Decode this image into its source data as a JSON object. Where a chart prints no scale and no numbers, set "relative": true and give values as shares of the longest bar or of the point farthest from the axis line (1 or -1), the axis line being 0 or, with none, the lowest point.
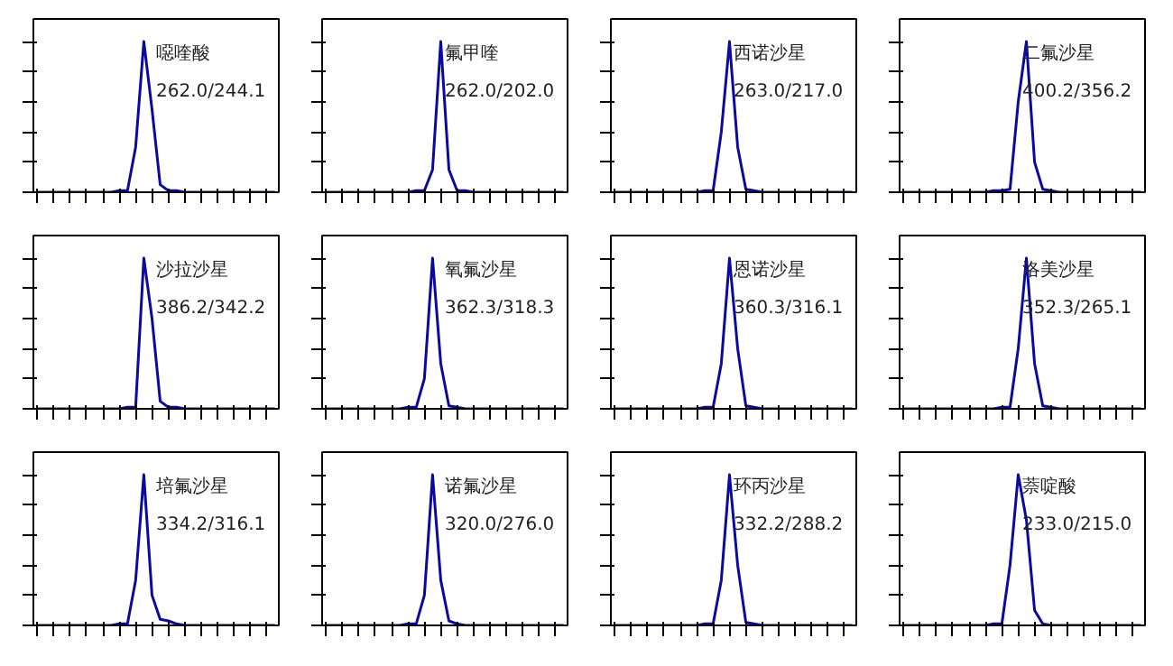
{
  "chart_data": [
    {
      "type": "line",
      "relative": true,
      "tick_labels": false,
      "categories": [
        null,
        null,
        null,
        null,
        null,
        null,
        null,
        null,
        null,
        null,
        null,
        null,
        null,
        null,
        null,
        null,
        null,
        null,
        null,
        null,
        null,
        null,
        null,
        null,
        null,
        null,
        null,
        null,
        null,
        null
      ],
      "series": [
        {
          "color": "#0a0aa0",
          "values": [
            0,
            0,
            0,
            0,
            0,
            0,
            0,
            0,
            0,
            0,
            0.01,
            0.01,
            0.3,
            1,
            0.55,
            0.05,
            0.01,
            0.01,
            0,
            0,
            0,
            0,
            0,
            0,
            0,
            0,
            0,
            0,
            0,
            0
          ]
        }
      ],
      "annotations": [
        "噁喹酸",
        "262.0/244.1"
      ]
    },
    {
      "type": "line",
      "relative": true,
      "tick_labels": false,
      "categories": [
        null,
        null,
        null,
        null,
        null,
        null,
        null,
        null,
        null,
        null,
        null,
        null,
        null,
        null,
        null,
        null,
        null,
        null,
        null,
        null,
        null,
        null,
        null,
        null,
        null,
        null,
        null,
        null,
        null,
        null
      ],
      "series": [
        {
          "color": "#0a0aa0",
          "values": [
            0,
            0,
            0,
            0,
            0,
            0,
            0,
            0,
            0,
            0,
            0,
            0.01,
            0.01,
            0.15,
            1,
            0.15,
            0.01,
            0.01,
            0,
            0,
            0,
            0,
            0,
            0,
            0,
            0,
            0,
            0,
            0,
            0
          ]
        }
      ],
      "annotations": [
        "氟甲喹",
        "262.0/202.0"
      ]
    },
    {
      "type": "line",
      "relative": true,
      "tick_labels": false,
      "categories": [
        null,
        null,
        null,
        null,
        null,
        null,
        null,
        null,
        null,
        null,
        null,
        null,
        null,
        null,
        null,
        null,
        null,
        null,
        null,
        null,
        null,
        null,
        null,
        null,
        null,
        null,
        null,
        null,
        null,
        null
      ],
      "series": [
        {
          "color": "#0a0aa0",
          "values": [
            0,
            0,
            0,
            0,
            0,
            0,
            0,
            0,
            0,
            0,
            0,
            0.01,
            0.01,
            0.4,
            1,
            0.3,
            0.02,
            0.01,
            0,
            0,
            0,
            0,
            0,
            0,
            0,
            0,
            0,
            0,
            0,
            0
          ]
        }
      ],
      "annotations": [
        "西诺沙星",
        "263.0/217.0"
      ]
    },
    {
      "type": "line",
      "relative": true,
      "tick_labels": false,
      "categories": [
        null,
        null,
        null,
        null,
        null,
        null,
        null,
        null,
        null,
        null,
        null,
        null,
        null,
        null,
        null,
        null,
        null,
        null,
        null,
        null,
        null,
        null,
        null,
        null,
        null,
        null,
        null,
        null,
        null,
        null
      ],
      "series": [
        {
          "color": "#0a0aa0",
          "values": [
            0,
            0,
            0,
            0,
            0,
            0,
            0,
            0,
            0,
            0,
            0,
            0.01,
            0.01,
            0.02,
            0.6,
            1,
            0.2,
            0.02,
            0.01,
            0,
            0,
            0,
            0,
            0,
            0,
            0,
            0,
            0,
            0,
            0
          ]
        }
      ],
      "annotations": [
        "二氟沙星",
        "400.2/356.2"
      ]
    },
    {
      "type": "line",
      "relative": true,
      "tick_labels": false,
      "categories": [
        null,
        null,
        null,
        null,
        null,
        null,
        null,
        null,
        null,
        null,
        null,
        null,
        null,
        null,
        null,
        null,
        null,
        null,
        null,
        null,
        null,
        null,
        null,
        null,
        null,
        null,
        null,
        null,
        null,
        null
      ],
      "series": [
        {
          "color": "#0a0aa0",
          "values": [
            0,
            0,
            0,
            0,
            0,
            0,
            0,
            0,
            0,
            0,
            0,
            0.01,
            0.01,
            1,
            0.6,
            0.05,
            0.01,
            0.01,
            0,
            0,
            0,
            0,
            0,
            0,
            0,
            0,
            0,
            0,
            0,
            0
          ]
        }
      ],
      "annotations": [
        "沙拉沙星",
        "386.2/342.2"
      ]
    },
    {
      "type": "line",
      "relative": true,
      "tick_labels": false,
      "categories": [
        null,
        null,
        null,
        null,
        null,
        null,
        null,
        null,
        null,
        null,
        null,
        null,
        null,
        null,
        null,
        null,
        null,
        null,
        null,
        null,
        null,
        null,
        null,
        null,
        null,
        null,
        null,
        null,
        null,
        null
      ],
      "series": [
        {
          "color": "#0a0aa0",
          "values": [
            0,
            0,
            0,
            0,
            0,
            0,
            0,
            0,
            0,
            0,
            0.01,
            0.01,
            0.2,
            1,
            0.3,
            0.02,
            0.01,
            0,
            0,
            0,
            0,
            0,
            0,
            0,
            0,
            0,
            0,
            0,
            0,
            0
          ]
        }
      ],
      "annotations": [
        "氧氟沙星",
        "362.3/318.3"
      ]
    },
    {
      "type": "line",
      "relative": true,
      "tick_labels": false,
      "categories": [
        null,
        null,
        null,
        null,
        null,
        null,
        null,
        null,
        null,
        null,
        null,
        null,
        null,
        null,
        null,
        null,
        null,
        null,
        null,
        null,
        null,
        null,
        null,
        null,
        null,
        null,
        null,
        null,
        null,
        null
      ],
      "series": [
        {
          "color": "#0a0aa0",
          "values": [
            0,
            0,
            0,
            0,
            0,
            0,
            0,
            0,
            0,
            0,
            0,
            0.01,
            0.01,
            0.3,
            1,
            0.4,
            0.02,
            0.01,
            0,
            0,
            0,
            0,
            0,
            0,
            0,
            0,
            0,
            0,
            0,
            0
          ]
        }
      ],
      "annotations": [
        "恩诺沙星",
        "360.3/316.1"
      ]
    },
    {
      "type": "line",
      "relative": true,
      "tick_labels": false,
      "categories": [
        null,
        null,
        null,
        null,
        null,
        null,
        null,
        null,
        null,
        null,
        null,
        null,
        null,
        null,
        null,
        null,
        null,
        null,
        null,
        null,
        null,
        null,
        null,
        null,
        null,
        null,
        null,
        null,
        null,
        null
      ],
      "series": [
        {
          "color": "#0a0aa0",
          "values": [
            0,
            0,
            0,
            0,
            0,
            0,
            0,
            0,
            0,
            0,
            0,
            0,
            0.01,
            0.01,
            0.4,
            1,
            0.3,
            0.02,
            0.01,
            0,
            0,
            0,
            0,
            0,
            0,
            0,
            0,
            0,
            0,
            0
          ]
        }
      ],
      "annotations": [
        "洛美沙星",
        "352.3/265.1"
      ]
    },
    {
      "type": "line",
      "relative": true,
      "tick_labels": false,
      "categories": [
        null,
        null,
        null,
        null,
        null,
        null,
        null,
        null,
        null,
        null,
        null,
        null,
        null,
        null,
        null,
        null,
        null,
        null,
        null,
        null,
        null,
        null,
        null,
        null,
        null,
        null,
        null,
        null,
        null,
        null
      ],
      "series": [
        {
          "color": "#0a0aa0",
          "values": [
            0,
            0,
            0,
            0,
            0,
            0,
            0,
            0,
            0,
            0,
            0.01,
            0.01,
            0.3,
            1,
            0.2,
            0.04,
            0.03,
            0.01,
            0,
            0,
            0,
            0,
            0,
            0,
            0,
            0,
            0,
            0,
            0,
            0
          ]
        }
      ],
      "annotations": [
        "培氟沙星",
        "334.2/316.1"
      ]
    },
    {
      "type": "line",
      "relative": true,
      "tick_labels": false,
      "categories": [
        null,
        null,
        null,
        null,
        null,
        null,
        null,
        null,
        null,
        null,
        null,
        null,
        null,
        null,
        null,
        null,
        null,
        null,
        null,
        null,
        null,
        null,
        null,
        null,
        null,
        null,
        null,
        null,
        null,
        null
      ],
      "series": [
        {
          "color": "#0a0aa0",
          "values": [
            0,
            0,
            0,
            0,
            0,
            0,
            0,
            0,
            0,
            0,
            0.01,
            0.01,
            0.2,
            1,
            0.3,
            0.03,
            0.01,
            0,
            0,
            0,
            0,
            0,
            0,
            0,
            0,
            0,
            0,
            0,
            0,
            0
          ]
        }
      ],
      "annotations": [
        "诺氟沙星",
        "320.0/276.0"
      ]
    },
    {
      "type": "line",
      "relative": true,
      "tick_labels": false,
      "categories": [
        null,
        null,
        null,
        null,
        null,
        null,
        null,
        null,
        null,
        null,
        null,
        null,
        null,
        null,
        null,
        null,
        null,
        null,
        null,
        null,
        null,
        null,
        null,
        null,
        null,
        null,
        null,
        null,
        null,
        null
      ],
      "series": [
        {
          "color": "#0a0aa0",
          "values": [
            0,
            0,
            0,
            0,
            0,
            0,
            0,
            0,
            0,
            0,
            0,
            0.01,
            0.01,
            0.3,
            1,
            0.4,
            0.02,
            0.01,
            0,
            0,
            0,
            0,
            0,
            0,
            0,
            0,
            0,
            0,
            0,
            0
          ]
        }
      ],
      "annotations": [
        "环丙沙星",
        "332.2/288.2"
      ]
    },
    {
      "type": "line",
      "relative": true,
      "tick_labels": false,
      "categories": [
        null,
        null,
        null,
        null,
        null,
        null,
        null,
        null,
        null,
        null,
        null,
        null,
        null,
        null,
        null,
        null,
        null,
        null,
        null,
        null,
        null,
        null,
        null,
        null,
        null,
        null,
        null,
        null,
        null,
        null
      ],
      "series": [
        {
          "color": "#0a0aa0",
          "values": [
            0,
            0,
            0,
            0,
            0,
            0,
            0,
            0,
            0,
            0,
            0,
            0.01,
            0.01,
            0.4,
            1,
            0.7,
            0.1,
            0.01,
            0,
            0,
            0,
            0,
            0,
            0,
            0,
            0,
            0,
            0,
            0,
            0
          ]
        }
      ],
      "annotations": [
        "萘啶酸",
        "233.0/215.0"
      ]
    }
  ]
}
